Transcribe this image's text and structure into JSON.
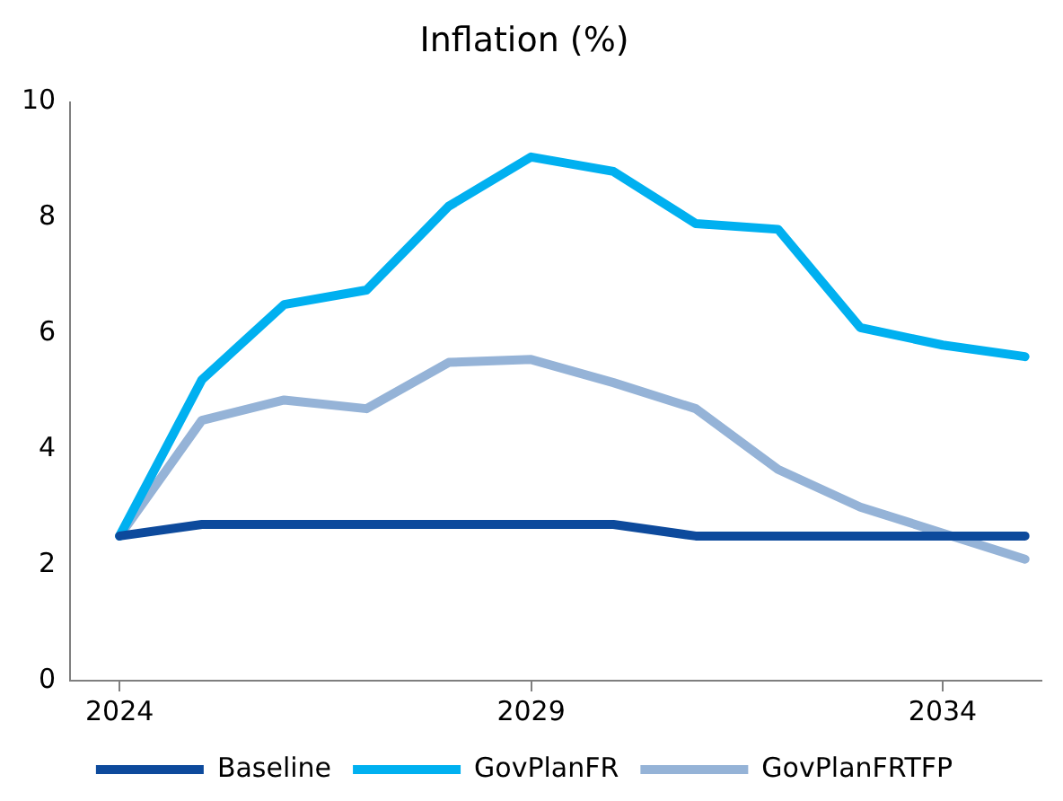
{
  "chart_data": {
    "type": "line",
    "title": "Inflation (%)",
    "x": [
      2024,
      2025,
      2026,
      2027,
      2028,
      2029,
      2030,
      2031,
      2032,
      2033,
      2034,
      2035
    ],
    "series": [
      {
        "name": "Baseline",
        "color": "#0d4a9c",
        "values": [
          2.5,
          2.7,
          2.7,
          2.7,
          2.7,
          2.7,
          2.7,
          2.5,
          2.5,
          2.5,
          2.5,
          2.5
        ]
      },
      {
        "name": "GovPlanFR",
        "color": "#00b0f0",
        "values": [
          2.5,
          5.2,
          6.5,
          6.75,
          8.2,
          9.05,
          8.8,
          7.9,
          7.8,
          6.1,
          5.8,
          5.6
        ]
      },
      {
        "name": "GovPlanFRTFP",
        "color": "#95b3d7",
        "values": [
          2.5,
          4.5,
          4.85,
          4.7,
          5.5,
          5.55,
          5.15,
          4.7,
          3.65,
          3.0,
          2.55,
          2.1
        ]
      }
    ],
    "xlim": [
      2023.4,
      2035.2
    ],
    "xticks": [
      2024,
      2029,
      2034
    ],
    "ylim": [
      0,
      10
    ],
    "yticks": [
      0,
      2,
      4,
      6,
      8,
      10
    ],
    "grid": false,
    "legend": "bottom",
    "marker": "none",
    "line_style": "solid"
  }
}
